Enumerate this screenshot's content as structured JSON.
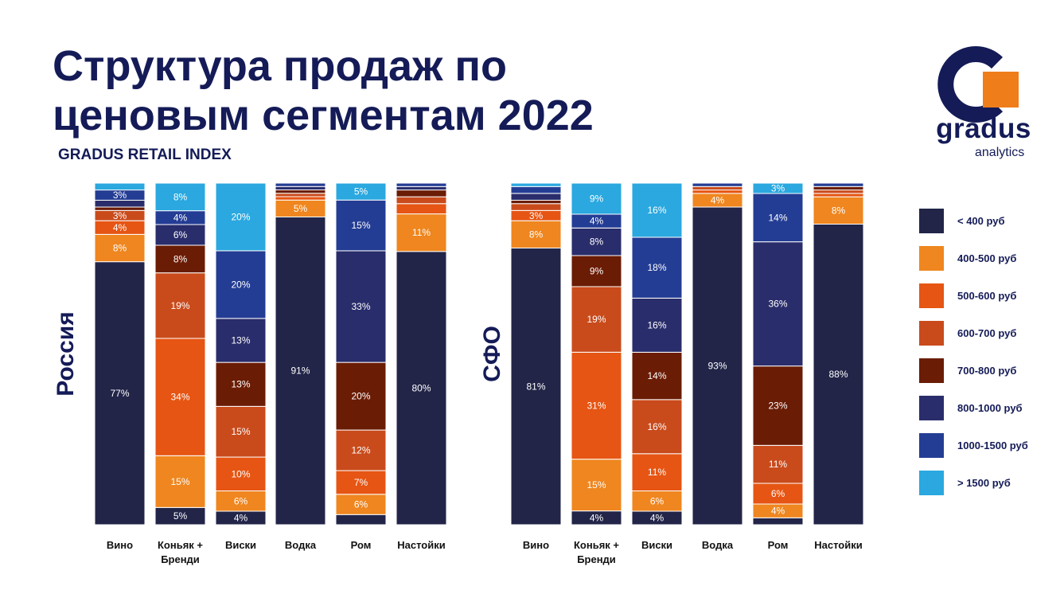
{
  "title": "Структура продаж по ценовым сегментам 2022",
  "subtitle": "GRADUS RETAIL INDEX",
  "logo": {
    "wordmark": "gradus",
    "sub": "analytics",
    "colors": [
      "#141b57",
      "#ef7d1a"
    ]
  },
  "segments": [
    {
      "name": "< 400 руб",
      "color": "#222548"
    },
    {
      "name": "400-500 руб",
      "color": "#ef861f"
    },
    {
      "name": "500-600 руб",
      "color": "#e65513"
    },
    {
      "name": "600-700 руб",
      "color": "#c94b1c"
    },
    {
      "name": "700-800 руб",
      "color": "#6a1c05"
    },
    {
      "name": "800-1000 руб",
      "color": "#2a2d6b"
    },
    {
      "name": "1000-1500 руб",
      "color": "#243d94"
    },
    {
      "name": "> 1500 руб",
      "color": "#2aa8df"
    }
  ],
  "chart_data": [
    {
      "type": "bar",
      "stacked": true,
      "region": "Россия",
      "categories": [
        "Вино",
        "Коньяк + Бренди",
        "Виски",
        "Водка",
        "Ром",
        "Настойки"
      ],
      "series": [
        {
          "name": "< 400 руб",
          "values": [
            77,
            5,
            4,
            91,
            3,
            80
          ]
        },
        {
          "name": "400-500 руб",
          "values": [
            8,
            15,
            6,
            5,
            6,
            11
          ]
        },
        {
          "name": "500-600 руб",
          "values": [
            4,
            34,
            10,
            1,
            7,
            3
          ]
        },
        {
          "name": "600-700 руб",
          "values": [
            3,
            19,
            15,
            1,
            12,
            2
          ]
        },
        {
          "name": "700-800 руб",
          "values": [
            1,
            8,
            13,
            1,
            20,
            2
          ]
        },
        {
          "name": "800-1000 руб",
          "values": [
            2,
            6,
            13,
            1,
            33,
            1
          ]
        },
        {
          "name": "1000-1500 руб",
          "values": [
            3,
            4,
            20,
            1,
            15,
            1
          ]
        },
        {
          "name": "> 1500 руб",
          "values": [
            2,
            8,
            20,
            0,
            5,
            0
          ]
        }
      ],
      "labels": [
        [
          "77%",
          "5%",
          "4%",
          "91%",
          "",
          "80%"
        ],
        [
          "8%",
          "15%",
          "6%",
          "5%",
          "6%",
          "11%"
        ],
        [
          "4%",
          "34%",
          "10%",
          "",
          "7%",
          ""
        ],
        [
          "3%",
          "19%",
          "15%",
          "",
          "12%",
          ""
        ],
        [
          "",
          "8%",
          "13%",
          "",
          "20%",
          ""
        ],
        [
          "",
          "6%",
          "13%",
          "",
          "33%",
          ""
        ],
        [
          "3%",
          "4%",
          "20%",
          "",
          "15%",
          ""
        ],
        [
          "",
          "8%",
          "20%",
          "",
          "5%",
          ""
        ]
      ]
    },
    {
      "type": "bar",
      "stacked": true,
      "region": "СФО",
      "categories": [
        "Вино",
        "Коньяк + Бренди",
        "Виски",
        "Водка",
        "Ром",
        "Настойки"
      ],
      "series": [
        {
          "name": "< 400 руб",
          "values": [
            81,
            4,
            4,
            93,
            2,
            88
          ]
        },
        {
          "name": "400-500 руб",
          "values": [
            8,
            15,
            6,
            4,
            4,
            8
          ]
        },
        {
          "name": "500-600 руб",
          "values": [
            3,
            31,
            11,
            1,
            6,
            1
          ]
        },
        {
          "name": "600-700 руб",
          "values": [
            2,
            19,
            16,
            1,
            11,
            1
          ]
        },
        {
          "name": "700-800 руб",
          "values": [
            1,
            9,
            14,
            0,
            23,
            1
          ]
        },
        {
          "name": "800-1000 руб",
          "values": [
            2,
            8,
            16,
            0,
            36,
            0
          ]
        },
        {
          "name": "1000-1500 руб",
          "values": [
            2,
            4,
            18,
            1,
            14,
            1
          ]
        },
        {
          "name": "> 1500 руб",
          "values": [
            1,
            9,
            16,
            0,
            3,
            0
          ]
        }
      ],
      "labels": [
        [
          "81%",
          "4%",
          "4%",
          "93%",
          "",
          "88%"
        ],
        [
          "8%",
          "15%",
          "6%",
          "4%",
          "4%",
          "8%"
        ],
        [
          "3%",
          "31%",
          "11%",
          "",
          "6%",
          ""
        ],
        [
          "",
          "19%",
          "16%",
          "",
          "11%",
          ""
        ],
        [
          "",
          "9%",
          "14%",
          "",
          "23%",
          ""
        ],
        [
          "",
          "8%",
          "16%",
          "",
          "36%",
          ""
        ],
        [
          "",
          "4%",
          "18%",
          "",
          "14%",
          ""
        ],
        [
          "",
          "9%",
          "16%",
          "",
          "3%",
          ""
        ]
      ]
    }
  ]
}
